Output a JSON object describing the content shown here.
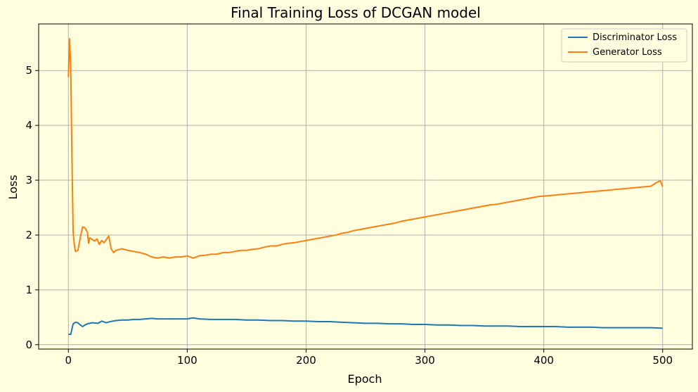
{
  "chart_data": {
    "type": "line",
    "title": "Final Training Loss of DCGAN model",
    "xlabel": "Epoch",
    "ylabel": "Loss",
    "xlim": [
      -25,
      525
    ],
    "ylim": [
      -0.08,
      5.85
    ],
    "xticks": [
      0,
      100,
      200,
      300,
      400,
      500
    ],
    "yticks": [
      0,
      1,
      2,
      3,
      4,
      5
    ],
    "grid": true,
    "legend_position": "top-right",
    "series": [
      {
        "name": "Discriminator Loss",
        "color": "#1f77b4",
        "points": [
          [
            0,
            0.19
          ],
          [
            2,
            0.19
          ],
          [
            4,
            0.38
          ],
          [
            6,
            0.41
          ],
          [
            8,
            0.4
          ],
          [
            10,
            0.36
          ],
          [
            12,
            0.33
          ],
          [
            14,
            0.36
          ],
          [
            16,
            0.38
          ],
          [
            20,
            0.4
          ],
          [
            25,
            0.39
          ],
          [
            28,
            0.43
          ],
          [
            32,
            0.4
          ],
          [
            35,
            0.42
          ],
          [
            40,
            0.44
          ],
          [
            45,
            0.45
          ],
          [
            50,
            0.45
          ],
          [
            55,
            0.46
          ],
          [
            60,
            0.46
          ],
          [
            65,
            0.47
          ],
          [
            70,
            0.48
          ],
          [
            75,
            0.47
          ],
          [
            80,
            0.47
          ],
          [
            85,
            0.47
          ],
          [
            90,
            0.47
          ],
          [
            95,
            0.47
          ],
          [
            100,
            0.47
          ],
          [
            105,
            0.49
          ],
          [
            110,
            0.47
          ],
          [
            120,
            0.46
          ],
          [
            130,
            0.46
          ],
          [
            140,
            0.46
          ],
          [
            150,
            0.45
          ],
          [
            160,
            0.45
          ],
          [
            170,
            0.44
          ],
          [
            180,
            0.44
          ],
          [
            190,
            0.43
          ],
          [
            200,
            0.43
          ],
          [
            210,
            0.42
          ],
          [
            220,
            0.42
          ],
          [
            230,
            0.41
          ],
          [
            240,
            0.4
          ],
          [
            250,
            0.39
          ],
          [
            260,
            0.39
          ],
          [
            270,
            0.38
          ],
          [
            280,
            0.38
          ],
          [
            290,
            0.37
          ],
          [
            300,
            0.37
          ],
          [
            310,
            0.36
          ],
          [
            320,
            0.36
          ],
          [
            330,
            0.35
          ],
          [
            340,
            0.35
          ],
          [
            350,
            0.34
          ],
          [
            360,
            0.34
          ],
          [
            370,
            0.34
          ],
          [
            380,
            0.33
          ],
          [
            390,
            0.33
          ],
          [
            400,
            0.33
          ],
          [
            410,
            0.33
          ],
          [
            420,
            0.32
          ],
          [
            430,
            0.32
          ],
          [
            440,
            0.32
          ],
          [
            450,
            0.31
          ],
          [
            460,
            0.31
          ],
          [
            470,
            0.31
          ],
          [
            480,
            0.31
          ],
          [
            490,
            0.31
          ],
          [
            500,
            0.3
          ]
        ]
      },
      {
        "name": "Generator Loss",
        "color": "#ff7f0e",
        "points": [
          [
            0,
            4.88
          ],
          [
            1,
            5.58
          ],
          [
            2,
            5.05
          ],
          [
            3,
            3.4
          ],
          [
            4,
            2.05
          ],
          [
            5,
            1.82
          ],
          [
            6,
            1.7
          ],
          [
            8,
            1.72
          ],
          [
            10,
            1.95
          ],
          [
            12,
            2.15
          ],
          [
            14,
            2.13
          ],
          [
            16,
            2.05
          ],
          [
            17,
            1.85
          ],
          [
            18,
            1.95
          ],
          [
            20,
            1.92
          ],
          [
            22,
            1.89
          ],
          [
            24,
            1.93
          ],
          [
            26,
            1.83
          ],
          [
            28,
            1.9
          ],
          [
            30,
            1.86
          ],
          [
            32,
            1.92
          ],
          [
            34,
            1.98
          ],
          [
            36,
            1.75
          ],
          [
            38,
            1.68
          ],
          [
            40,
            1.72
          ],
          [
            45,
            1.75
          ],
          [
            50,
            1.72
          ],
          [
            55,
            1.7
          ],
          [
            60,
            1.68
          ],
          [
            65,
            1.65
          ],
          [
            70,
            1.6
          ],
          [
            75,
            1.58
          ],
          [
            80,
            1.6
          ],
          [
            85,
            1.58
          ],
          [
            90,
            1.6
          ],
          [
            95,
            1.6
          ],
          [
            100,
            1.62
          ],
          [
            105,
            1.58
          ],
          [
            110,
            1.62
          ],
          [
            115,
            1.63
          ],
          [
            120,
            1.65
          ],
          [
            125,
            1.65
          ],
          [
            130,
            1.68
          ],
          [
            135,
            1.68
          ],
          [
            140,
            1.7
          ],
          [
            145,
            1.72
          ],
          [
            150,
            1.72
          ],
          [
            155,
            1.74
          ],
          [
            160,
            1.75
          ],
          [
            165,
            1.78
          ],
          [
            170,
            1.8
          ],
          [
            175,
            1.8
          ],
          [
            180,
            1.83
          ],
          [
            185,
            1.85
          ],
          [
            190,
            1.86
          ],
          [
            195,
            1.88
          ],
          [
            200,
            1.9
          ],
          [
            205,
            1.92
          ],
          [
            210,
            1.94
          ],
          [
            215,
            1.96
          ],
          [
            220,
            1.98
          ],
          [
            225,
            2.0
          ],
          [
            230,
            2.03
          ],
          [
            235,
            2.05
          ],
          [
            240,
            2.08
          ],
          [
            245,
            2.1
          ],
          [
            250,
            2.12
          ],
          [
            255,
            2.14
          ],
          [
            260,
            2.16
          ],
          [
            265,
            2.18
          ],
          [
            270,
            2.2
          ],
          [
            275,
            2.22
          ],
          [
            280,
            2.25
          ],
          [
            285,
            2.27
          ],
          [
            290,
            2.29
          ],
          [
            295,
            2.31
          ],
          [
            300,
            2.33
          ],
          [
            305,
            2.35
          ],
          [
            310,
            2.37
          ],
          [
            315,
            2.39
          ],
          [
            320,
            2.41
          ],
          [
            325,
            2.43
          ],
          [
            330,
            2.45
          ],
          [
            335,
            2.47
          ],
          [
            340,
            2.49
          ],
          [
            345,
            2.51
          ],
          [
            350,
            2.53
          ],
          [
            355,
            2.55
          ],
          [
            360,
            2.56
          ],
          [
            365,
            2.58
          ],
          [
            370,
            2.6
          ],
          [
            375,
            2.62
          ],
          [
            380,
            2.64
          ],
          [
            385,
            2.66
          ],
          [
            390,
            2.68
          ],
          [
            395,
            2.7
          ],
          [
            400,
            2.71
          ],
          [
            405,
            2.72
          ],
          [
            410,
            2.73
          ],
          [
            415,
            2.74
          ],
          [
            420,
            2.75
          ],
          [
            425,
            2.76
          ],
          [
            430,
            2.77
          ],
          [
            435,
            2.78
          ],
          [
            440,
            2.79
          ],
          [
            445,
            2.8
          ],
          [
            450,
            2.81
          ],
          [
            455,
            2.82
          ],
          [
            460,
            2.83
          ],
          [
            465,
            2.84
          ],
          [
            470,
            2.85
          ],
          [
            475,
            2.86
          ],
          [
            480,
            2.87
          ],
          [
            485,
            2.88
          ],
          [
            490,
            2.89
          ],
          [
            495,
            2.96
          ],
          [
            498,
            2.99
          ],
          [
            500,
            2.88
          ]
        ]
      }
    ]
  }
}
